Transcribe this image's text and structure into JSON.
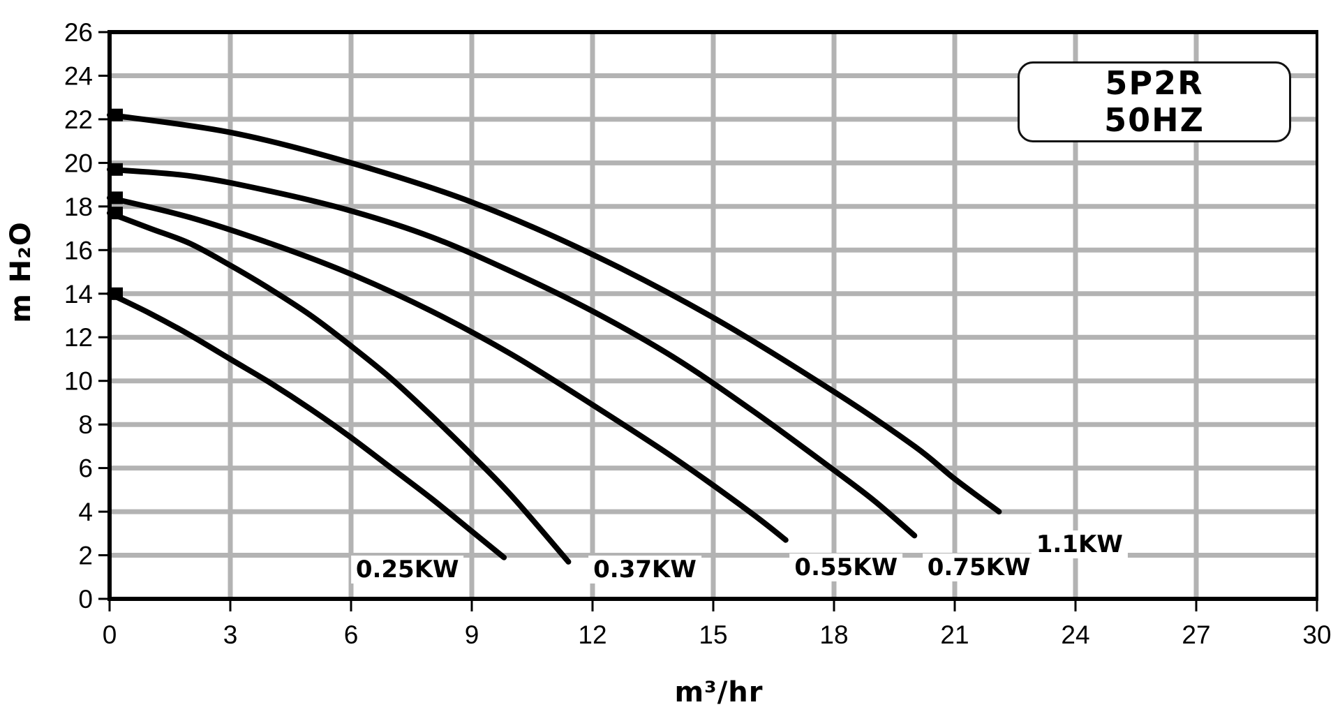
{
  "chart_data": {
    "type": "line",
    "title": "",
    "xlabel": "m³/hr",
    "ylabel": "m H₂O",
    "xlim": [
      0,
      30
    ],
    "ylim": [
      0,
      26
    ],
    "x_ticks": [
      0,
      3,
      6,
      9,
      12,
      15,
      18,
      21,
      24,
      27,
      30
    ],
    "y_ticks": [
      0,
      2,
      4,
      6,
      8,
      10,
      12,
      14,
      16,
      18,
      20,
      22,
      24,
      26
    ],
    "grid": true,
    "grid_x_step": 3,
    "grid_y_step": 2,
    "legend": {
      "line1": "5P2R",
      "line2": "50HZ",
      "position": "top-right"
    },
    "colors": {
      "curve": "#000000",
      "grid": "#b3b3b3",
      "axis": "#000000",
      "background": "#ffffff"
    },
    "series": [
      {
        "name": "0.25KW",
        "points": [
          [
            0,
            14.0
          ],
          [
            1,
            13.1
          ],
          [
            2,
            12.1
          ],
          [
            3,
            11.0
          ],
          [
            4,
            9.9
          ],
          [
            5,
            8.7
          ],
          [
            6,
            7.4
          ],
          [
            7,
            6.0
          ],
          [
            8,
            4.6
          ],
          [
            9,
            3.1
          ],
          [
            9.8,
            1.9
          ]
        ],
        "label_pos": [
          7.4,
          1.35
        ]
      },
      {
        "name": "0.37KW",
        "points": [
          [
            0,
            17.7
          ],
          [
            1,
            17.0
          ],
          [
            2,
            16.3
          ],
          [
            3,
            15.3
          ],
          [
            4,
            14.2
          ],
          [
            5,
            13.0
          ],
          [
            6,
            11.6
          ],
          [
            7,
            10.1
          ],
          [
            8,
            8.4
          ],
          [
            9,
            6.6
          ],
          [
            10,
            4.7
          ],
          [
            11.4,
            1.7
          ]
        ],
        "label_pos": [
          13.3,
          1.35
        ]
      },
      {
        "name": "0.55KW",
        "points": [
          [
            0,
            18.4
          ],
          [
            2,
            17.5
          ],
          [
            4,
            16.3
          ],
          [
            6,
            14.9
          ],
          [
            8,
            13.2
          ],
          [
            10,
            11.2
          ],
          [
            12,
            8.9
          ],
          [
            14,
            6.5
          ],
          [
            15.9,
            4.0
          ],
          [
            16.8,
            2.7
          ]
        ],
        "label_pos": [
          18.3,
          1.45
        ]
      },
      {
        "name": "0.75KW",
        "points": [
          [
            0,
            19.7
          ],
          [
            2,
            19.4
          ],
          [
            4,
            18.7
          ],
          [
            6,
            17.8
          ],
          [
            8,
            16.6
          ],
          [
            10,
            15.0
          ],
          [
            12,
            13.2
          ],
          [
            14,
            11.1
          ],
          [
            16,
            8.6
          ],
          [
            18,
            5.9
          ],
          [
            19,
            4.5
          ],
          [
            20,
            2.9
          ]
        ],
        "label_pos": [
          21.6,
          1.45
        ]
      },
      {
        "name": "1.1KW",
        "points": [
          [
            0,
            22.2
          ],
          [
            3,
            21.4
          ],
          [
            6,
            20.0
          ],
          [
            9,
            18.2
          ],
          [
            12,
            15.8
          ],
          [
            15,
            12.9
          ],
          [
            18,
            9.5
          ],
          [
            20,
            7.0
          ],
          [
            21,
            5.5
          ],
          [
            22.1,
            4.0
          ]
        ],
        "label_pos": [
          24.1,
          2.5
        ]
      }
    ]
  }
}
